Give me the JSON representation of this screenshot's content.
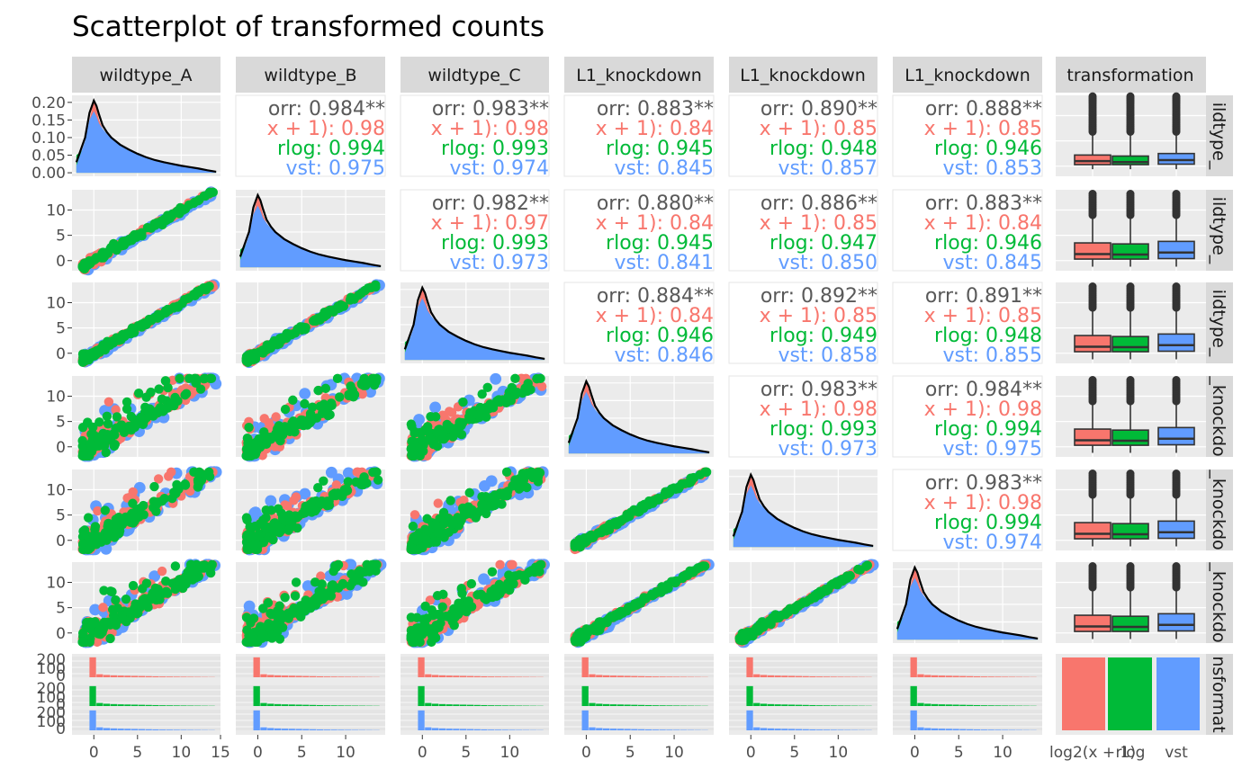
{
  "title": "Scatterplot of transformed counts",
  "colors": {
    "log2(x + 1)": "#F8766D",
    "rlog": "#00BA38",
    "vst": "#619CFF",
    "overall": "#595959",
    "density_outline": "#000000",
    "panel_bg": "#EBEBEB",
    "strip_bg": "#D9D9D9"
  },
  "column_strips": [
    "wildtype_A",
    "wildtype_B",
    "wildtype_C",
    "L1_knockdown",
    "L1_knockdown",
    "L1_knockdown",
    "transformation"
  ],
  "row_strips": [
    "ildtype_",
    "ildtype_",
    "ildtype_",
    "_knockdo",
    "_knockdo",
    "_knockdo",
    "nsformat"
  ],
  "x_ticks": {
    "col1": [
      "0",
      "5",
      "10",
      "15"
    ],
    "col2": [
      "0",
      "5",
      "10"
    ],
    "col3": [
      "0",
      "5",
      "10"
    ],
    "col4": [
      "0",
      "5",
      "10"
    ],
    "col5": [
      "0",
      "5",
      "10"
    ],
    "col6": [
      "0",
      "5",
      "10"
    ],
    "col7": [
      "log2(x + 1)",
      "rlog",
      "vst"
    ]
  },
  "y_ticks": {
    "row1": [
      "0.20",
      "0.15",
      "0.10",
      "0.05",
      "0.00"
    ],
    "rows2to6": [
      "10",
      "5",
      "0"
    ],
    "row7": [
      "200",
      "100",
      "0",
      "200",
      "100",
      "0",
      "200",
      "100",
      "0"
    ]
  },
  "chart_data": {
    "type": "scatter",
    "description_of_layout": "7x7 ggpairs matrix",
    "series": [
      {
        "name": "log2(x + 1)"
      },
      {
        "name": "rlog"
      },
      {
        "name": "vst"
      }
    ],
    "axis_x_lim": [
      -2.5,
      14.5
    ],
    "axis_y_lim_counts": [
      -2,
      14
    ],
    "axis_y_lim_density": [
      -0.01,
      0.22
    ],
    "correlations": [
      {
        "row": 1,
        "col": 2,
        "lines": [
          "orr: 0.984**",
          "x + 1): 0.98",
          "rlog: 0.994",
          "vst: 0.975"
        ]
      },
      {
        "row": 1,
        "col": 3,
        "lines": [
          "orr: 0.983**",
          "x + 1): 0.98",
          "rlog: 0.993",
          "vst: 0.974"
        ]
      },
      {
        "row": 1,
        "col": 4,
        "lines": [
          "orr: 0.883**",
          "x + 1): 0.84",
          "rlog: 0.945",
          "vst: 0.845"
        ]
      },
      {
        "row": 1,
        "col": 5,
        "lines": [
          "orr: 0.890**",
          "x + 1): 0.85",
          "rlog: 0.948",
          "vst: 0.857"
        ]
      },
      {
        "row": 1,
        "col": 6,
        "lines": [
          "orr: 0.888**",
          "x + 1): 0.85",
          "rlog: 0.946",
          "vst: 0.853"
        ]
      },
      {
        "row": 2,
        "col": 3,
        "lines": [
          "orr: 0.982**",
          "x + 1): 0.97",
          "rlog: 0.993",
          "vst: 0.973"
        ]
      },
      {
        "row": 2,
        "col": 4,
        "lines": [
          "orr: 0.880**",
          "x + 1): 0.84",
          "rlog: 0.945",
          "vst: 0.841"
        ]
      },
      {
        "row": 2,
        "col": 5,
        "lines": [
          "orr: 0.886**",
          "x + 1): 0.85",
          "rlog: 0.947",
          "vst: 0.850"
        ]
      },
      {
        "row": 2,
        "col": 6,
        "lines": [
          "orr: 0.883**",
          "x + 1): 0.84",
          "rlog: 0.946",
          "vst: 0.845"
        ]
      },
      {
        "row": 3,
        "col": 4,
        "lines": [
          "orr: 0.884**",
          "x + 1): 0.84",
          "rlog: 0.946",
          "vst: 0.846"
        ]
      },
      {
        "row": 3,
        "col": 5,
        "lines": [
          "orr: 0.892**",
          "x + 1): 0.85",
          "rlog: 0.949",
          "vst: 0.858"
        ]
      },
      {
        "row": 3,
        "col": 6,
        "lines": [
          "orr: 0.891**",
          "x + 1): 0.85",
          "rlog: 0.948",
          "vst: 0.855"
        ]
      },
      {
        "row": 4,
        "col": 5,
        "lines": [
          "orr: 0.983**",
          "x + 1): 0.98",
          "rlog: 0.993",
          "vst: 0.973"
        ]
      },
      {
        "row": 4,
        "col": 6,
        "lines": [
          "orr: 0.984**",
          "x + 1): 0.98",
          "rlog: 0.994",
          "vst: 0.975"
        ]
      },
      {
        "row": 5,
        "col": 6,
        "lines": [
          "orr: 0.983**",
          "x + 1): 0.98",
          "rlog: 0.994",
          "vst: 0.974"
        ]
      }
    ],
    "density_curve": {
      "x": [
        -2,
        -1,
        -0.5,
        0,
        0.3,
        0.6,
        1,
        1.5,
        2,
        2.5,
        3,
        4,
        5,
        6,
        7,
        8,
        9,
        10,
        11,
        12,
        13,
        14
      ],
      "vst": [
        0.02,
        0.09,
        0.15,
        0.175,
        0.16,
        0.14,
        0.125,
        0.11,
        0.1,
        0.09,
        0.08,
        0.066,
        0.054,
        0.044,
        0.036,
        0.03,
        0.025,
        0.02,
        0.016,
        0.012,
        0.007,
        0.003
      ],
      "log2": [
        0.0,
        0.06,
        0.15,
        0.205,
        0.18,
        0.15,
        0.125,
        0.108,
        0.097,
        0.087,
        0.078,
        0.065,
        0.053,
        0.044,
        0.036,
        0.03,
        0.025,
        0.02,
        0.016,
        0.012,
        0.007,
        0.003
      ],
      "rlog": [
        0.05,
        0.07,
        0.08,
        0.085,
        0.09,
        0.1,
        0.105,
        0.1,
        0.095,
        0.085,
        0.075,
        0.064,
        0.052,
        0.043,
        0.035,
        0.03,
        0.025,
        0.02,
        0.016,
        0.012,
        0.007,
        0.003
      ],
      "outline": [
        0.03,
        0.1,
        0.17,
        0.205,
        0.19,
        0.165,
        0.135,
        0.115,
        0.1,
        0.09,
        0.08,
        0.066,
        0.054,
        0.044,
        0.036,
        0.03,
        0.025,
        0.02,
        0.016,
        0.012,
        0.007,
        0.003
      ]
    },
    "boxplot": {
      "categories": [
        "log2(x + 1)",
        "rlog",
        "vst"
      ],
      "row1_density_panel": [
        {
          "q1": 0.3,
          "median": 1.0,
          "q3": 2.2,
          "whisker_lo": -0.6,
          "whisker_hi": 6.5,
          "outliers_from": 6.8,
          "outliers_to": 14
        },
        {
          "q1": 0.3,
          "median": 0.8,
          "q3": 2.0,
          "whisker_lo": -0.6,
          "whisker_hi": 6.5,
          "outliers_from": 6.8,
          "outliers_to": 14
        },
        {
          "q1": 0.4,
          "median": 1.2,
          "q3": 2.5,
          "whisker_lo": -0.6,
          "whisker_hi": 6.5,
          "outliers_from": 6.8,
          "outliers_to": 14
        }
      ],
      "rows_2to6": [
        {
          "q1": 0.3,
          "median": 1.3,
          "q3": 3.5,
          "whisker_lo": -1.2,
          "whisker_hi": 8.5,
          "outliers_from": 9,
          "outliers_to": 13.5
        },
        {
          "q1": 0.3,
          "median": 1.2,
          "q3": 3.3,
          "whisker_lo": -1.2,
          "whisker_hi": 8.5,
          "outliers_from": 9,
          "outliers_to": 13.5
        },
        {
          "q1": 0.4,
          "median": 1.6,
          "q3": 3.8,
          "whisker_lo": -1.2,
          "whisker_hi": 8.5,
          "outliers_from": 9,
          "outliers_to": 13.5
        }
      ]
    },
    "histogram_bin_heights": [
      260,
      40,
      30,
      25,
      22,
      20,
      18,
      16,
      14,
      12,
      10,
      9,
      8,
      7,
      6,
      5,
      4,
      3
    ],
    "histogram_bin_start": -0.5,
    "histogram_bin_width": 0.8,
    "histogram_ylim": [
      0,
      270
    ],
    "transformation_bars": {
      "categories": [
        "log2(x + 1)",
        "rlog",
        "vst"
      ],
      "values": [
        1,
        1,
        1
      ]
    }
  }
}
